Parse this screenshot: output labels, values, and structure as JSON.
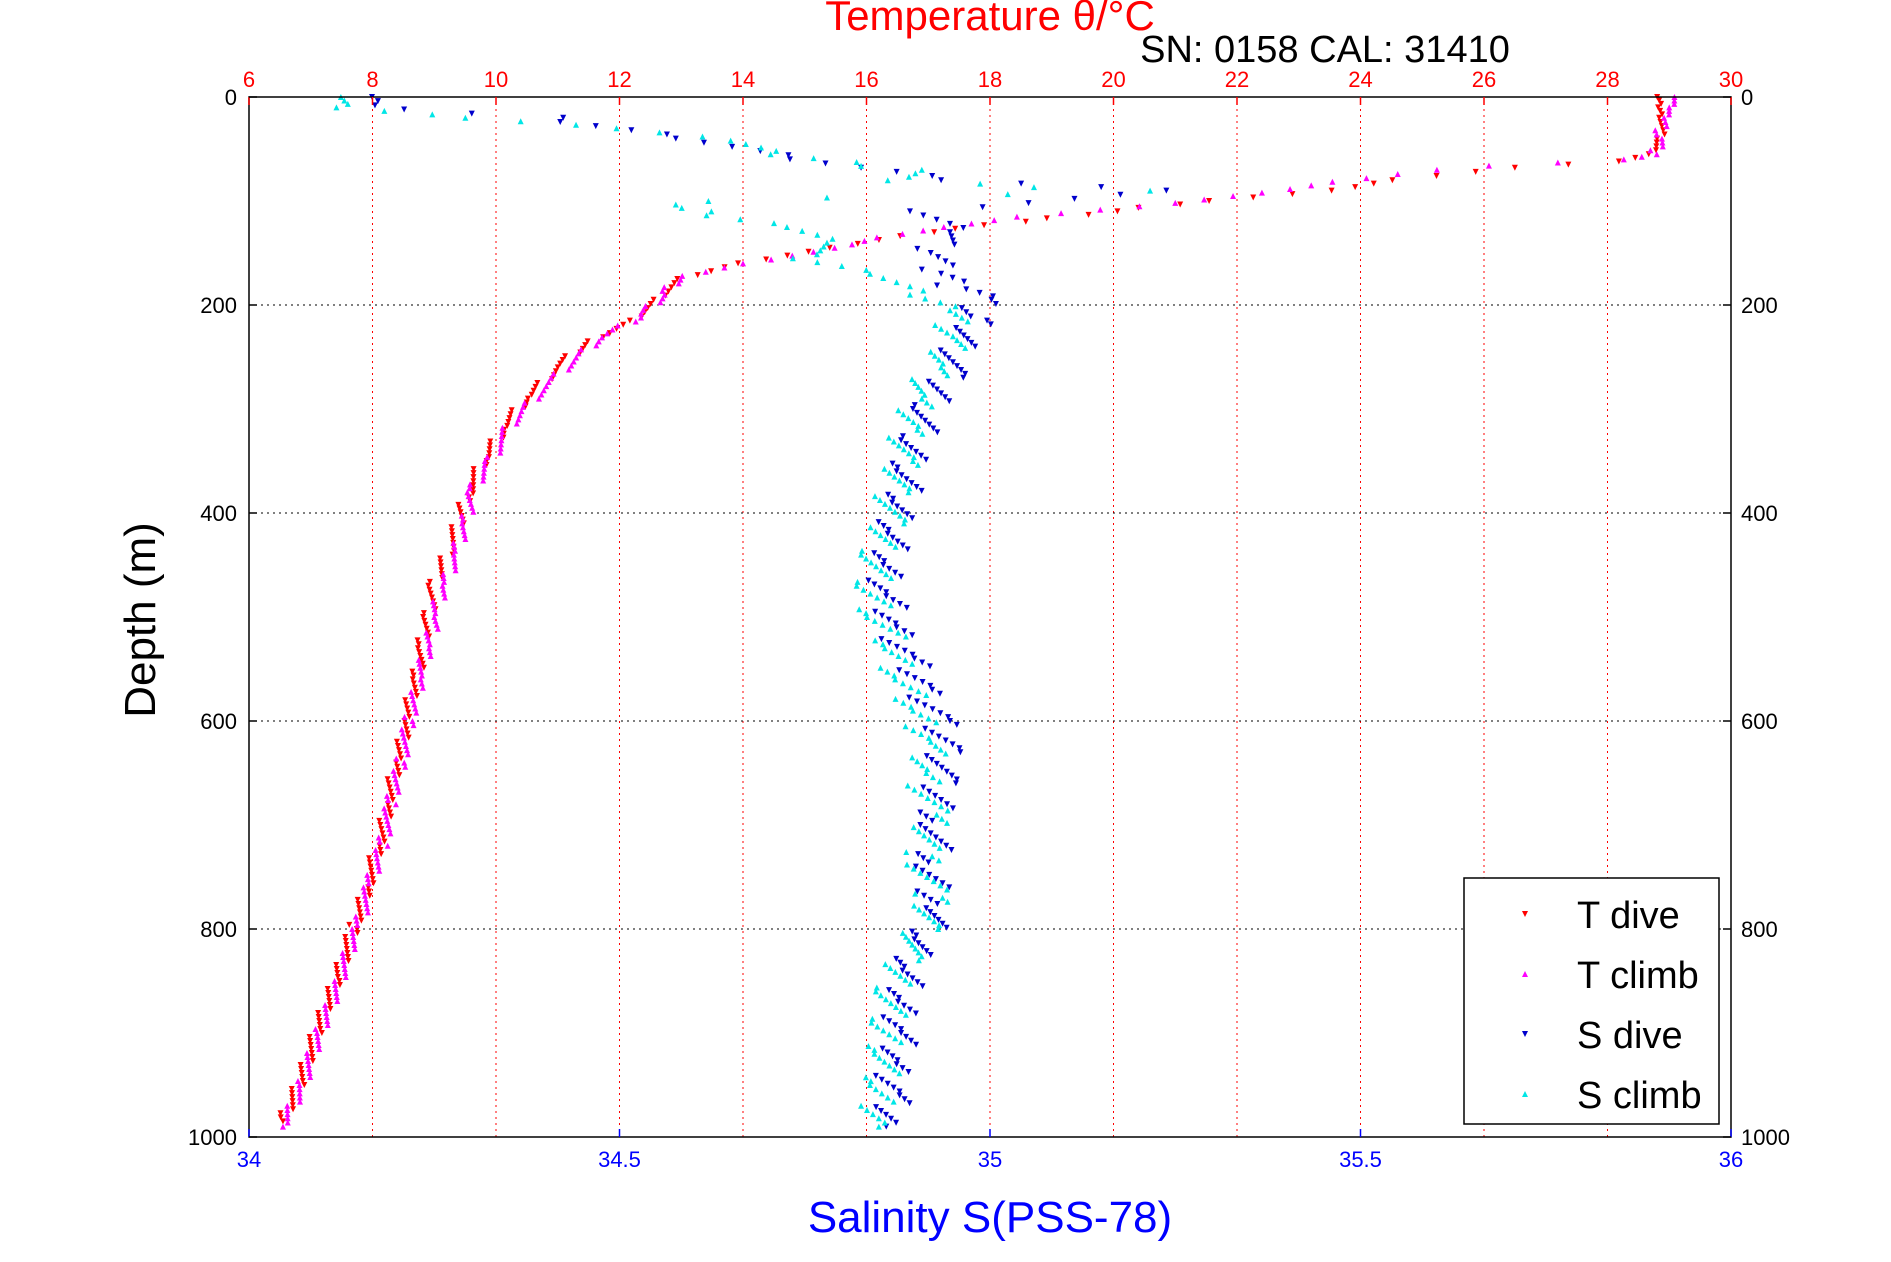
{
  "chart_data": {
    "type": "scatter",
    "title": "SN: 0158  CAL: 31410",
    "top_axis_label": "Temperature θ/°C",
    "bottom_axis_label": "Salinity S(PSS-78)",
    "ylabel": "Depth (m)",
    "y_reversed": true,
    "ylim": [
      0,
      1000
    ],
    "yticks": [
      "0",
      "200",
      "400",
      "600",
      "800",
      "1000"
    ],
    "temperature_lim": [
      6,
      30
    ],
    "temperature_ticks": [
      "6",
      "8",
      "10",
      "12",
      "14",
      "16",
      "18",
      "20",
      "22",
      "24",
      "26",
      "28",
      "30"
    ],
    "salinity_lim": [
      34,
      36
    ],
    "salinity_ticks": [
      "34",
      "34.5",
      "35",
      "35.5",
      "36"
    ],
    "grid": true,
    "legend_position": "bottom-right",
    "colors": {
      "t_dive": "#ff0000",
      "t_climb": "#ff00ff",
      "s_dive": "#0000cc",
      "s_climb": "#00e6e6",
      "temperature_axis": "#ff0000",
      "salinity_axis": "#0000ff"
    },
    "series": [
      {
        "name": "T dive",
        "axis": "temperature",
        "color": "#ff0000",
        "points": [
          [
            28.9,
            0
          ],
          [
            28.9,
            10
          ],
          [
            28.9,
            20
          ],
          [
            28.85,
            40
          ],
          [
            28.7,
            55
          ],
          [
            28.2,
            62
          ],
          [
            26.5,
            68
          ],
          [
            24.5,
            80
          ],
          [
            23.5,
            90
          ],
          [
            21.5,
            100
          ],
          [
            20.0,
            110
          ],
          [
            18.5,
            120
          ],
          [
            17.0,
            130
          ],
          [
            15.5,
            145
          ],
          [
            14.0,
            160
          ],
          [
            13.0,
            175
          ],
          [
            12.6,
            195
          ],
          [
            12.2,
            215
          ],
          [
            11.5,
            235
          ],
          [
            11.0,
            260
          ],
          [
            10.5,
            290
          ],
          [
            10.1,
            320
          ],
          [
            9.8,
            350
          ],
          [
            9.5,
            385
          ],
          [
            9.4,
            410
          ],
          [
            9.2,
            440
          ],
          [
            9.0,
            470
          ],
          [
            8.9,
            500
          ],
          [
            8.8,
            530
          ],
          [
            8.7,
            560
          ],
          [
            8.55,
            600
          ],
          [
            8.4,
            640
          ],
          [
            8.25,
            680
          ],
          [
            8.1,
            720
          ],
          [
            7.9,
            760
          ],
          [
            7.7,
            800
          ],
          [
            7.4,
            850
          ],
          [
            7.1,
            900
          ],
          [
            6.8,
            950
          ],
          [
            6.55,
            985
          ]
        ]
      },
      {
        "name": "T climb",
        "axis": "temperature",
        "color": "#ff00ff",
        "points": [
          [
            29.1,
            0
          ],
          [
            29.0,
            10
          ],
          [
            28.9,
            20
          ],
          [
            28.85,
            40
          ],
          [
            28.75,
            55
          ],
          [
            28.2,
            60
          ],
          [
            26.0,
            66
          ],
          [
            24.0,
            78
          ],
          [
            22.5,
            92
          ],
          [
            20.5,
            105
          ],
          [
            18.5,
            115
          ],
          [
            17.3,
            125
          ],
          [
            16.2,
            135
          ],
          [
            15.5,
            145
          ],
          [
            14.0,
            160
          ],
          [
            13.0,
            172
          ],
          [
            12.7,
            190
          ],
          [
            12.3,
            212
          ],
          [
            11.6,
            235
          ],
          [
            11.1,
            262
          ],
          [
            10.6,
            290
          ],
          [
            10.2,
            318
          ],
          [
            9.9,
            350
          ],
          [
            9.6,
            380
          ],
          [
            9.5,
            410
          ],
          [
            9.35,
            440
          ],
          [
            9.15,
            470
          ],
          [
            9.0,
            500
          ],
          [
            8.9,
            530
          ],
          [
            8.75,
            560
          ],
          [
            8.6,
            600
          ],
          [
            8.45,
            640
          ],
          [
            8.3,
            680
          ],
          [
            8.15,
            720
          ],
          [
            7.95,
            760
          ],
          [
            7.75,
            800
          ],
          [
            7.45,
            850
          ],
          [
            7.15,
            900
          ],
          [
            6.85,
            950
          ],
          [
            6.55,
            990
          ]
        ]
      },
      {
        "name": "S dive",
        "axis": "salinity",
        "color": "#0000cc",
        "points": [
          [
            34.15,
            0
          ],
          [
            34.15,
            8
          ],
          [
            34.4,
            20
          ],
          [
            34.6,
            40
          ],
          [
            34.75,
            60
          ],
          [
            34.95,
            80
          ],
          [
            35.25,
            90
          ],
          [
            34.9,
            110
          ],
          [
            34.95,
            130
          ],
          [
            34.92,
            150
          ],
          [
            34.93,
            170
          ],
          [
            34.96,
            185
          ],
          [
            34.99,
            195
          ],
          [
            34.98,
            215
          ],
          [
            34.96,
            240
          ],
          [
            34.94,
            270
          ],
          [
            34.92,
            300
          ],
          [
            34.9,
            330
          ],
          [
            34.89,
            360
          ],
          [
            34.88,
            390
          ],
          [
            34.87,
            420
          ],
          [
            34.86,
            450
          ],
          [
            34.86,
            480
          ],
          [
            34.87,
            510
          ],
          [
            34.89,
            540
          ],
          [
            34.91,
            570
          ],
          [
            34.93,
            600
          ],
          [
            34.94,
            630
          ],
          [
            34.93,
            660
          ],
          [
            34.93,
            700
          ],
          [
            34.92,
            740
          ],
          [
            34.93,
            780
          ],
          [
            34.91,
            810
          ],
          [
            34.89,
            840
          ],
          [
            34.88,
            870
          ],
          [
            34.88,
            900
          ],
          [
            34.87,
            930
          ],
          [
            34.87,
            960
          ],
          [
            34.86,
            990
          ]
        ]
      },
      {
        "name": "S climb",
        "axis": "salinity",
        "color": "#00e6e6",
        "points": [
          [
            34.14,
            0
          ],
          [
            34.13,
            10
          ],
          [
            34.3,
            20
          ],
          [
            34.5,
            30
          ],
          [
            34.65,
            42
          ],
          [
            34.7,
            55
          ],
          [
            34.9,
            70
          ],
          [
            34.85,
            80
          ],
          [
            35.2,
            90
          ],
          [
            34.6,
            100
          ],
          [
            34.6,
            110
          ],
          [
            34.75,
            125
          ],
          [
            34.8,
            140
          ],
          [
            34.75,
            155
          ],
          [
            34.85,
            170
          ],
          [
            34.9,
            190
          ],
          [
            34.95,
            205
          ],
          [
            34.95,
            230
          ],
          [
            34.93,
            260
          ],
          [
            34.9,
            290
          ],
          [
            34.89,
            320
          ],
          [
            34.88,
            350
          ],
          [
            34.87,
            380
          ],
          [
            34.86,
            410
          ],
          [
            34.85,
            440
          ],
          [
            34.84,
            470
          ],
          [
            34.85,
            500
          ],
          [
            34.87,
            530
          ],
          [
            34.88,
            560
          ],
          [
            34.9,
            590
          ],
          [
            34.92,
            620
          ],
          [
            34.91,
            650
          ],
          [
            34.92,
            690
          ],
          [
            34.91,
            730
          ],
          [
            34.92,
            770
          ],
          [
            34.91,
            800
          ],
          [
            34.88,
            830
          ],
          [
            34.87,
            860
          ],
          [
            34.86,
            890
          ],
          [
            34.86,
            920
          ],
          [
            34.85,
            950
          ],
          [
            34.85,
            990
          ]
        ]
      }
    ]
  }
}
